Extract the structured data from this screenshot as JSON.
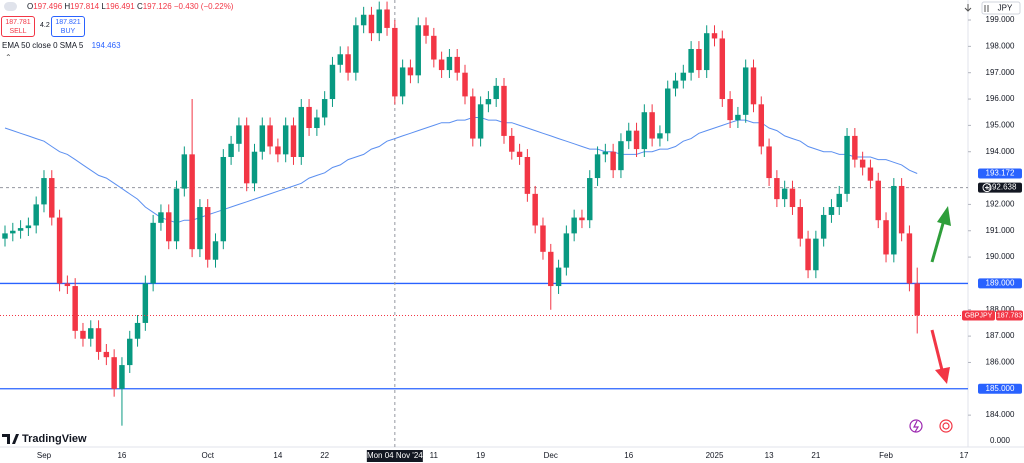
{
  "ui": {
    "ohlc": {
      "o_key": "O",
      "o": "197.496",
      "h_key": "H",
      "h": "197.814",
      "l_key": "L",
      "l": "196.491",
      "c_key": "C",
      "c": "197.126",
      "change": "−0.430 (−0.22%)"
    },
    "sell": {
      "price": "187.781",
      "label": "SELL"
    },
    "spread": "4.2",
    "buy": {
      "price": "187.821",
      "label": "BUY"
    },
    "currency": "JPY",
    "logo": "TradingView"
  },
  "chart_data": {
    "type": "candlestick",
    "up_color": "#089981",
    "down_color": "#f23645",
    "categories": [
      null,
      null,
      null,
      null,
      null,
      "Sep",
      null,
      null,
      null,
      null,
      null,
      null,
      null,
      null,
      null,
      "16",
      null,
      null,
      null,
      null,
      null,
      null,
      null,
      null,
      null,
      null,
      "Oct",
      null,
      null,
      null,
      null,
      null,
      null,
      null,
      null,
      "14",
      null,
      null,
      null,
      null,
      null,
      "22",
      null,
      null,
      null,
      null,
      null,
      null,
      null,
      null,
      "Mon 04 Nov '24",
      null,
      null,
      null,
      null,
      "11",
      null,
      null,
      null,
      null,
      null,
      "19",
      null,
      null,
      null,
      null,
      null,
      null,
      null,
      null,
      "Dec",
      null,
      null,
      null,
      null,
      null,
      null,
      null,
      null,
      null,
      "16",
      null,
      null,
      null,
      null,
      null,
      null,
      null,
      null,
      null,
      null,
      "2025",
      null,
      null,
      null,
      null,
      null,
      null,
      "13",
      null,
      null,
      null,
      null,
      null,
      "21",
      null,
      null,
      null,
      null,
      null,
      null,
      null,
      null,
      "Feb",
      null,
      null,
      null,
      null,
      null,
      null,
      null,
      null,
      null,
      "17"
    ],
    "open": [
      190.7,
      190.9,
      191.0,
      191.1,
      191.2,
      192.0,
      193.0,
      191.5,
      189.0,
      188.9,
      187.2,
      186.9,
      187.3,
      186.4,
      186.2,
      185.0,
      185.9,
      186.9,
      187.5,
      189.0,
      191.3,
      191.7,
      190.6,
      192.6,
      193.9,
      190.3,
      191.9,
      189.9,
      190.6,
      193.8,
      194.3,
      195.0,
      192.8,
      194.0,
      195.0,
      194.2,
      193.9,
      195.0,
      193.8,
      195.7,
      194.9,
      195.3,
      196.0,
      197.3,
      197.7,
      197.0,
      198.8,
      199.2,
      198.5,
      199.4,
      198.7,
      196.1,
      197.2,
      196.9,
      198.8,
      198.4,
      197.5,
      197.1,
      197.6,
      197.0,
      196.1,
      194.5,
      195.8,
      196.0,
      196.5,
      194.6,
      194.0,
      193.8,
      192.4,
      191.2,
      190.2,
      188.9,
      189.6,
      190.9,
      191.5,
      191.4,
      193.0,
      193.9,
      194.0,
      193.3,
      194.4,
      194.8,
      194.1,
      195.5,
      194.5,
      194.7,
      196.4,
      196.7,
      197.0,
      197.9,
      197.1,
      198.5,
      198.3,
      196.0,
      195.2,
      195.4,
      197.2,
      195.8,
      194.2,
      193.0,
      192.2,
      192.6,
      191.9,
      190.7,
      189.5,
      190.7,
      191.6,
      191.9,
      192.4,
      194.6,
      193.7,
      193.4,
      192.9,
      191.4,
      190.1,
      192.7,
      190.9,
      189.0,
      null,
      null,
      null,
      null,
      null,
      null
    ],
    "high": [
      191.2,
      191.3,
      191.4,
      191.5,
      192.3,
      193.3,
      193.3,
      191.8,
      189.3,
      189.2,
      187.5,
      187.6,
      187.6,
      186.7,
      186.5,
      186.2,
      187.2,
      187.8,
      189.3,
      191.6,
      192.0,
      192.0,
      192.9,
      194.2,
      196.0,
      192.2,
      192.2,
      190.9,
      194.1,
      194.6,
      195.3,
      195.3,
      194.3,
      195.3,
      195.3,
      194.5,
      195.3,
      195.3,
      196.0,
      196.0,
      195.6,
      196.3,
      197.6,
      198.0,
      198.0,
      199.1,
      199.5,
      199.5,
      199.7,
      199.7,
      199.0,
      197.5,
      197.5,
      199.1,
      199.1,
      198.7,
      197.8,
      197.9,
      197.9,
      197.3,
      196.4,
      196.1,
      196.3,
      196.8,
      196.8,
      194.9,
      194.3,
      194.1,
      192.7,
      191.5,
      190.5,
      189.9,
      191.2,
      191.8,
      191.8,
      193.3,
      194.2,
      194.3,
      194.3,
      194.7,
      195.1,
      195.1,
      195.8,
      195.8,
      195.0,
      196.7,
      197.0,
      197.3,
      198.2,
      198.2,
      198.8,
      198.8,
      198.6,
      196.3,
      195.7,
      197.5,
      197.5,
      196.1,
      194.5,
      193.3,
      192.9,
      192.9,
      192.2,
      191.0,
      191.0,
      191.9,
      192.2,
      192.7,
      194.9,
      194.9,
      194.0,
      193.7,
      193.2,
      191.7,
      193.0,
      193.0,
      191.2,
      189.6,
      null,
      null,
      null,
      null,
      null,
      null
    ],
    "low": [
      190.4,
      190.6,
      190.7,
      190.8,
      190.9,
      191.7,
      191.2,
      188.7,
      188.6,
      186.9,
      186.6,
      186.6,
      186.1,
      185.9,
      184.7,
      183.6,
      185.6,
      186.6,
      187.2,
      188.7,
      191.0,
      190.3,
      190.3,
      192.3,
      190.0,
      190.0,
      189.6,
      189.6,
      190.3,
      193.5,
      194.0,
      192.5,
      192.5,
      193.7,
      193.9,
      193.6,
      193.6,
      193.5,
      193.5,
      194.6,
      194.6,
      195.0,
      195.7,
      197.0,
      196.7,
      196.7,
      198.5,
      198.2,
      198.2,
      198.4,
      195.8,
      195.8,
      196.6,
      196.6,
      198.1,
      197.2,
      196.8,
      196.8,
      196.7,
      195.8,
      194.2,
      194.2,
      195.5,
      195.7,
      194.3,
      193.7,
      193.5,
      192.1,
      190.9,
      189.9,
      188.0,
      188.6,
      189.3,
      190.6,
      191.1,
      191.1,
      192.7,
      193.6,
      193.0,
      193.0,
      194.1,
      193.8,
      193.8,
      194.2,
      194.2,
      194.4,
      196.1,
      196.4,
      196.7,
      196.8,
      196.8,
      198.0,
      195.7,
      194.9,
      194.9,
      195.1,
      195.5,
      193.9,
      192.7,
      191.9,
      191.9,
      191.6,
      190.4,
      189.2,
      189.2,
      190.4,
      191.3,
      191.6,
      192.1,
      193.4,
      193.1,
      192.6,
      191.1,
      189.8,
      189.8,
      190.6,
      188.7,
      187.1,
      null,
      null,
      null,
      null,
      null,
      null
    ],
    "close": [
      190.9,
      191.0,
      191.1,
      191.2,
      192.0,
      193.0,
      191.5,
      189.0,
      188.9,
      187.2,
      186.9,
      187.3,
      186.4,
      186.2,
      185.0,
      185.9,
      186.9,
      187.5,
      189.0,
      191.3,
      191.7,
      190.6,
      192.6,
      193.9,
      190.3,
      191.9,
      189.9,
      190.6,
      193.8,
      194.3,
      195.0,
      192.8,
      194.0,
      195.0,
      194.2,
      193.9,
      195.0,
      193.8,
      195.7,
      194.9,
      195.3,
      196.0,
      197.3,
      197.7,
      197.0,
      198.8,
      199.2,
      198.5,
      199.4,
      198.7,
      196.1,
      197.2,
      196.9,
      198.8,
      198.4,
      197.5,
      197.1,
      197.6,
      197.0,
      196.1,
      194.5,
      195.8,
      196.0,
      196.5,
      194.6,
      194.0,
      193.8,
      192.4,
      191.2,
      190.2,
      188.9,
      189.6,
      190.9,
      191.5,
      191.4,
      193.0,
      193.9,
      194.0,
      193.3,
      194.4,
      194.8,
      194.1,
      195.5,
      194.5,
      194.7,
      196.4,
      196.7,
      197.0,
      197.9,
      197.1,
      198.5,
      198.3,
      196.0,
      195.2,
      195.4,
      197.2,
      195.8,
      194.2,
      193.0,
      192.2,
      192.6,
      191.9,
      190.7,
      189.5,
      190.7,
      191.6,
      191.9,
      192.4,
      194.6,
      193.7,
      193.4,
      192.9,
      191.4,
      190.1,
      192.7,
      190.9,
      189.0,
      187.783,
      null,
      null,
      null,
      null,
      null,
      null
    ],
    "series": [
      {
        "name": "EMA 50 close 0 SMA 5",
        "color": "#5b8ff0",
        "legend_value": "194.463",
        "values": [
          194.9,
          194.8,
          194.7,
          194.6,
          194.5,
          194.4,
          194.2,
          194.0,
          193.9,
          193.7,
          193.5,
          193.3,
          193.1,
          193.0,
          192.8,
          192.6,
          192.4,
          192.2,
          191.9,
          191.7,
          191.5,
          191.4,
          191.3,
          191.4,
          191.4,
          191.5,
          191.6,
          191.7,
          191.8,
          191.9,
          192.0,
          192.1,
          192.2,
          192.3,
          192.4,
          192.5,
          192.6,
          192.7,
          192.8,
          193.0,
          193.1,
          193.2,
          193.4,
          193.5,
          193.7,
          193.8,
          193.9,
          194.1,
          194.2,
          194.4,
          194.5,
          194.6,
          194.7,
          194.8,
          194.9,
          195.0,
          195.1,
          195.1,
          195.2,
          195.2,
          195.3,
          195.3,
          195.2,
          195.2,
          195.1,
          195.1,
          195.0,
          194.9,
          194.8,
          194.7,
          194.6,
          194.5,
          194.4,
          194.3,
          194.2,
          194.1,
          194.1,
          194.0,
          194.0,
          193.9,
          193.9,
          193.9,
          194.0,
          194.0,
          194.1,
          194.1,
          194.2,
          194.4,
          194.5,
          194.7,
          194.8,
          194.9,
          195.0,
          195.1,
          195.2,
          195.2,
          195.1,
          195.1,
          194.9,
          194.8,
          194.6,
          194.5,
          194.4,
          194.2,
          194.1,
          194.0,
          194.0,
          193.9,
          193.9,
          193.8,
          193.8,
          193.8,
          193.7,
          193.7,
          193.6,
          193.5,
          193.3,
          193.172,
          null,
          null,
          null,
          null,
          null,
          null
        ]
      }
    ],
    "ylim": [
      182.79,
      199.76
    ],
    "yticks": [
      {
        "value": 199,
        "label": "199.000"
      },
      {
        "value": 198,
        "label": "198.000"
      },
      {
        "value": 197,
        "label": "197.000"
      },
      {
        "value": 196,
        "label": "196.000"
      },
      {
        "value": 195,
        "label": "195.000"
      },
      {
        "value": 194,
        "label": "194.000"
      },
      {
        "value": 192,
        "label": "192.000"
      },
      {
        "value": 191,
        "label": "191.000"
      },
      {
        "value": 190,
        "label": "190.000"
      },
      {
        "value": 188,
        "label": "188.000"
      },
      {
        "value": 187,
        "label": "187.000"
      },
      {
        "value": 186,
        "label": "186.000"
      },
      {
        "value": 184,
        "label": "184.000"
      }
    ],
    "volume_axis_label": "0.000",
    "hline_color": "#2962ff",
    "hlines": [
      {
        "value": 189,
        "label": "189.000"
      },
      {
        "value": 185,
        "label": "185.000"
      }
    ],
    "ema_price": {
      "value": 193.172,
      "label": "193.172"
    },
    "last_price": {
      "symbol": "GBPJPY",
      "value": 187.783,
      "label": "187.783"
    },
    "crosshair": {
      "category": 50,
      "value": 192.638,
      "label": "192.638"
    }
  }
}
